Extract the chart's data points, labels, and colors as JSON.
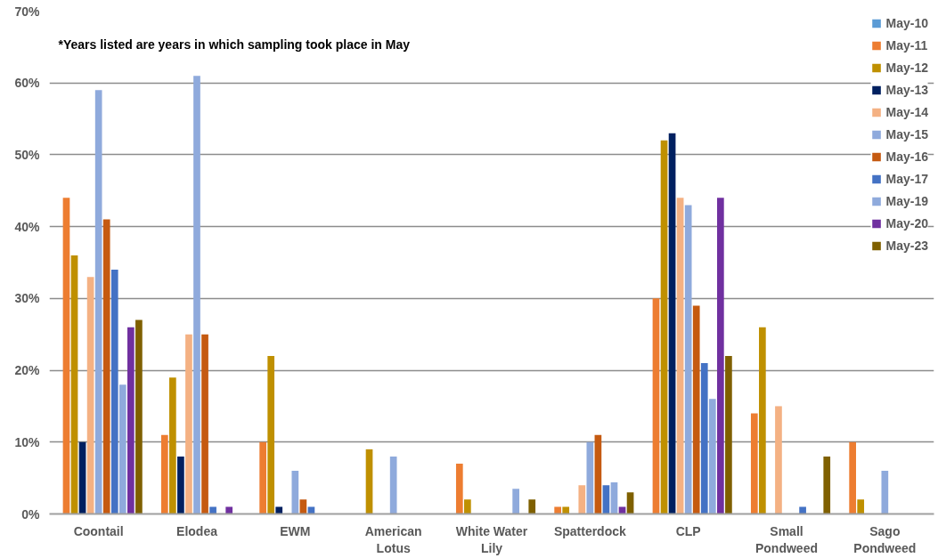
{
  "chart_data": {
    "type": "bar",
    "categories": [
      "Coontail",
      "Elodea",
      "EWM",
      "American Lotus",
      "White Water Lily",
      "Spatterdock",
      "CLP",
      "Small Pondweed",
      "Sago Pondweed"
    ],
    "series": [
      {
        "name": "May-10",
        "color": "#5b9bd5",
        "values": [
          null,
          null,
          null,
          null,
          null,
          null,
          null,
          null,
          null
        ]
      },
      {
        "name": "May-11",
        "color": "#ed7d31",
        "values": [
          44,
          11,
          10,
          null,
          7,
          1,
          30,
          14,
          10
        ]
      },
      {
        "name": "May-12",
        "color": "#bf9000",
        "values": [
          36,
          19,
          22,
          9,
          2,
          1,
          52,
          26,
          2
        ]
      },
      {
        "name": "May-13",
        "color": "#002060",
        "values": [
          10,
          8,
          1,
          null,
          null,
          null,
          53,
          null,
          null
        ]
      },
      {
        "name": "May-14",
        "color": "#f4b183",
        "values": [
          33,
          25,
          null,
          null,
          null,
          4,
          44,
          15,
          null
        ]
      },
      {
        "name": "May-15",
        "color": "#8faadc",
        "values": [
          59,
          61,
          6,
          8,
          null,
          10,
          43,
          null,
          6
        ]
      },
      {
        "name": "May-16",
        "color": "#c55a11",
        "values": [
          41,
          25,
          2,
          null,
          null,
          11,
          29,
          null,
          null
        ]
      },
      {
        "name": "May-17",
        "color": "#4472c4",
        "values": [
          34,
          1,
          1,
          null,
          null,
          4,
          21,
          1,
          null
        ]
      },
      {
        "name": "May-19",
        "color": "#8faadc",
        "values": [
          18,
          null,
          null,
          null,
          3.5,
          4.4,
          16,
          null,
          null
        ]
      },
      {
        "name": "May-20",
        "color": "#7030a0",
        "values": [
          26,
          1,
          null,
          null,
          null,
          1,
          44,
          null,
          null
        ]
      },
      {
        "name": "May-23",
        "color": "#7f6000",
        "values": [
          27,
          null,
          null,
          null,
          2,
          3,
          22,
          8,
          null
        ]
      }
    ],
    "ylim": [
      0,
      70
    ],
    "yticks": [
      {
        "value": 0,
        "label": "0%"
      },
      {
        "value": 10,
        "label": "10%"
      },
      {
        "value": 20,
        "label": "20%"
      },
      {
        "value": 30,
        "label": "30%"
      },
      {
        "value": 40,
        "label": "40%"
      },
      {
        "value": 50,
        "label": "50%"
      },
      {
        "value": 60,
        "label": "60%"
      },
      {
        "value": 70,
        "label": "70%"
      }
    ],
    "grid": "y",
    "legend": "top right",
    "annotations": [
      "*Years listed are years in which sampling took place in May"
    ]
  }
}
